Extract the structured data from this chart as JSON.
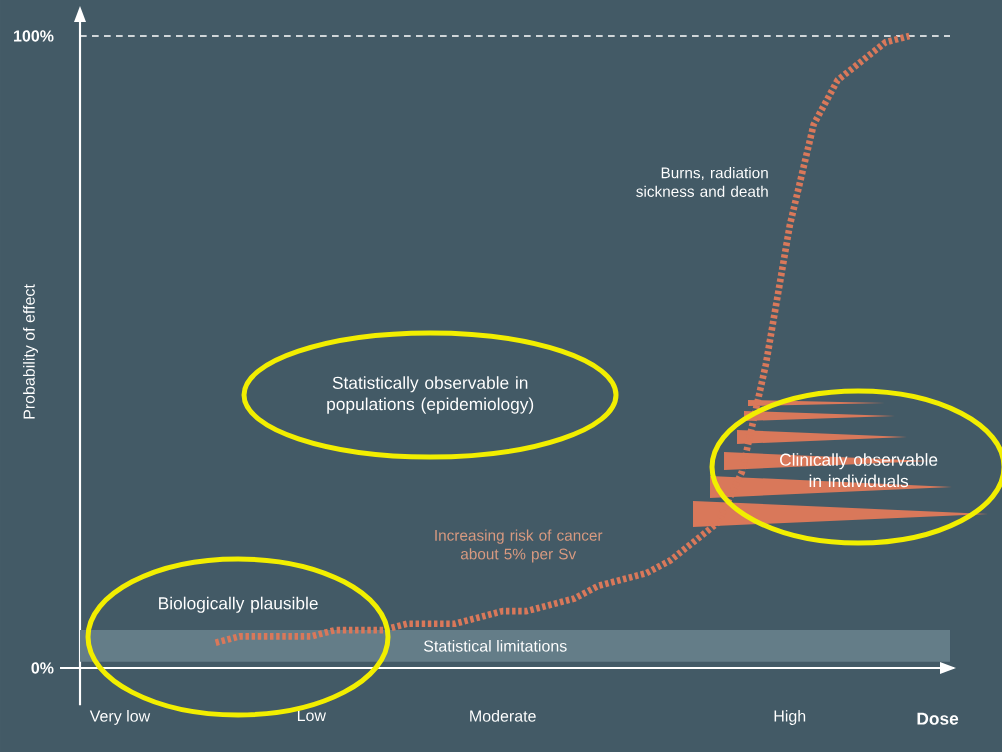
{
  "chart_data": {
    "type": "line",
    "xlabel": "Dose",
    "ylabel": "Probability of effect",
    "categories": [
      "Very low",
      null,
      null,
      null,
      null,
      null,
      null,
      null,
      "Low",
      null,
      null,
      null,
      null,
      null,
      null,
      null,
      "Moderate",
      null,
      null,
      null,
      null,
      null,
      null,
      null,
      null,
      null,
      null,
      null,
      "High",
      null,
      null,
      null,
      null,
      null,
      null
    ],
    "series": [
      {
        "color": "#d9785a",
        "values": [
          null,
          null,
          null,
          null,
          4,
          5,
          5,
          5,
          5,
          6,
          6,
          6,
          7,
          7,
          7,
          8,
          9,
          9,
          10,
          11,
          13,
          14,
          15,
          17,
          20,
          23,
          31,
          48,
          70,
          86,
          93,
          96,
          99,
          100,
          null
        ]
      }
    ],
    "ylim": [
      0,
      100
    ],
    "yticks": [
      {
        "value": 0,
        "label": "0%"
      },
      {
        "value": 100,
        "label": "100%"
      }
    ],
    "ref_lines": [
      {
        "axis": "y",
        "value": 100,
        "color": "#ffffff",
        "line_style": "dashed"
      }
    ],
    "bands": [
      {
        "axis": "y",
        "from": 1,
        "to": 6,
        "label": "Statistical limitations",
        "color": "#647d88"
      }
    ],
    "annotations": [
      "Statistically observable in populations (epidemiology)",
      "Clinically observable in individuals",
      "Biologically plausible",
      "Increasing risk of cancer about 5% per Sv",
      "Burns, radiation sickness and death"
    ],
    "line_style": "dashed"
  }
}
